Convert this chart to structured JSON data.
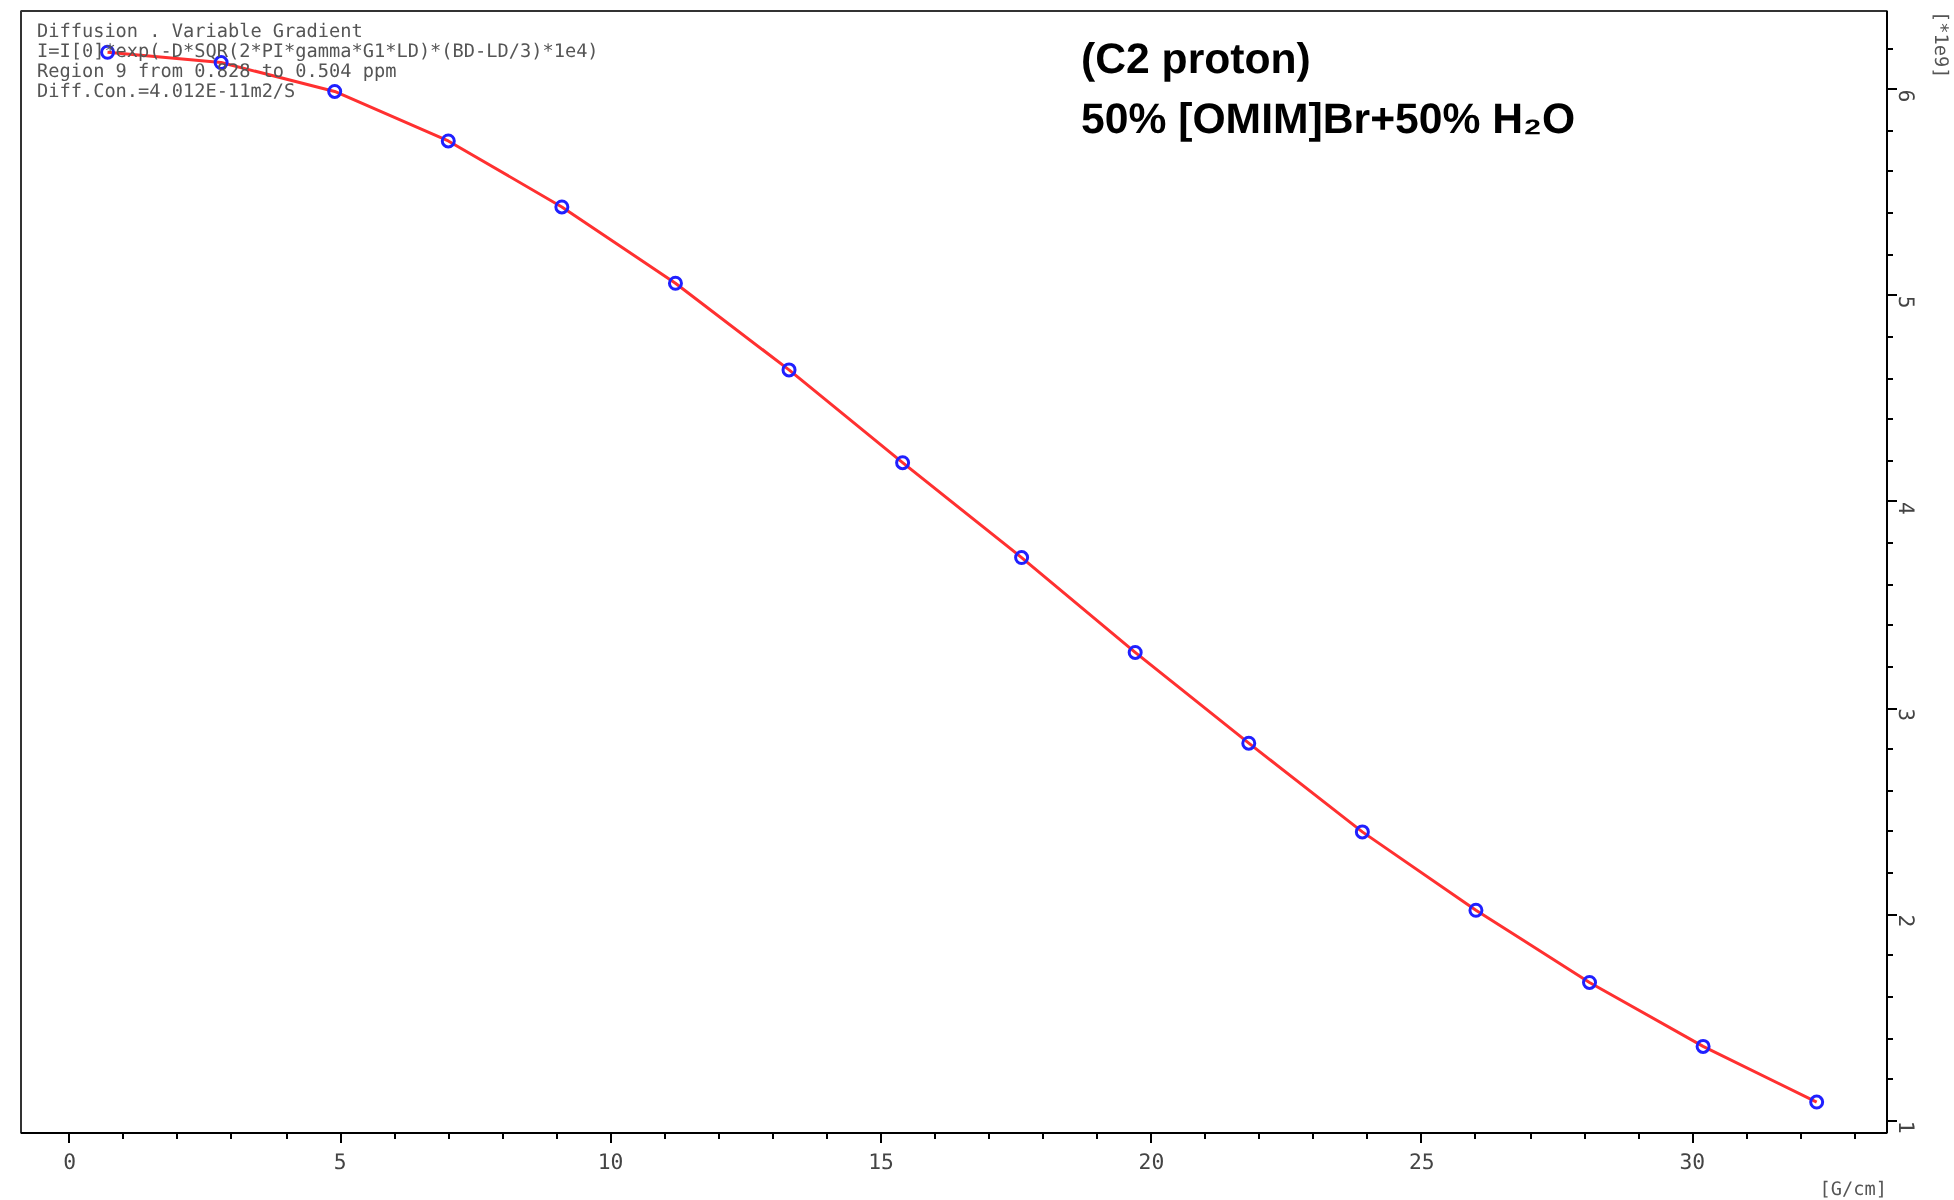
{
  "chart_data": {
    "type": "line",
    "annotations": [
      "Diffusion . Variable Gradient",
      "I=I[0]*exp(-D*SQR(2*PI*gamma*G1*LD)*(BD-LD/3)*1e4)",
      "Region 9 from 0.828 to 0.504 ppm",
      "Diff.Con.=4.012E-11m2/S",
      "(C2 proton)",
      "50% [OMIM]Br+50% H₂O"
    ],
    "xlabel": "[G/cm]",
    "ylabel": "[*1e9]",
    "x": [
      0.7,
      2.8,
      4.9,
      7.0,
      9.1,
      11.2,
      13.3,
      15.4,
      17.6,
      19.7,
      21.8,
      23.9,
      26.0,
      28.1,
      30.2,
      32.3
    ],
    "series": [
      {
        "color": "#ff3030",
        "values": [
          6.18,
          6.13,
          5.99,
          5.75,
          5.43,
          5.06,
          4.64,
          4.19,
          3.73,
          3.27,
          2.83,
          2.4,
          2.02,
          1.67,
          1.36,
          1.09
        ]
      },
      {
        "type": "scatter",
        "color": "#2020ff",
        "marker": "circle",
        "values": [
          6.18,
          6.13,
          5.99,
          5.75,
          5.43,
          5.06,
          4.64,
          4.19,
          3.73,
          3.27,
          2.83,
          2.4,
          2.02,
          1.67,
          1.36,
          1.09
        ]
      }
    ],
    "xlim": [
      -0.9,
      33.6
    ],
    "ylim": [
      0.94,
      6.38
    ],
    "xticks": [
      0,
      5,
      10,
      15,
      20,
      25,
      30
    ],
    "yticks": [
      1,
      2,
      3,
      4,
      5,
      6
    ],
    "grid": false
  }
}
